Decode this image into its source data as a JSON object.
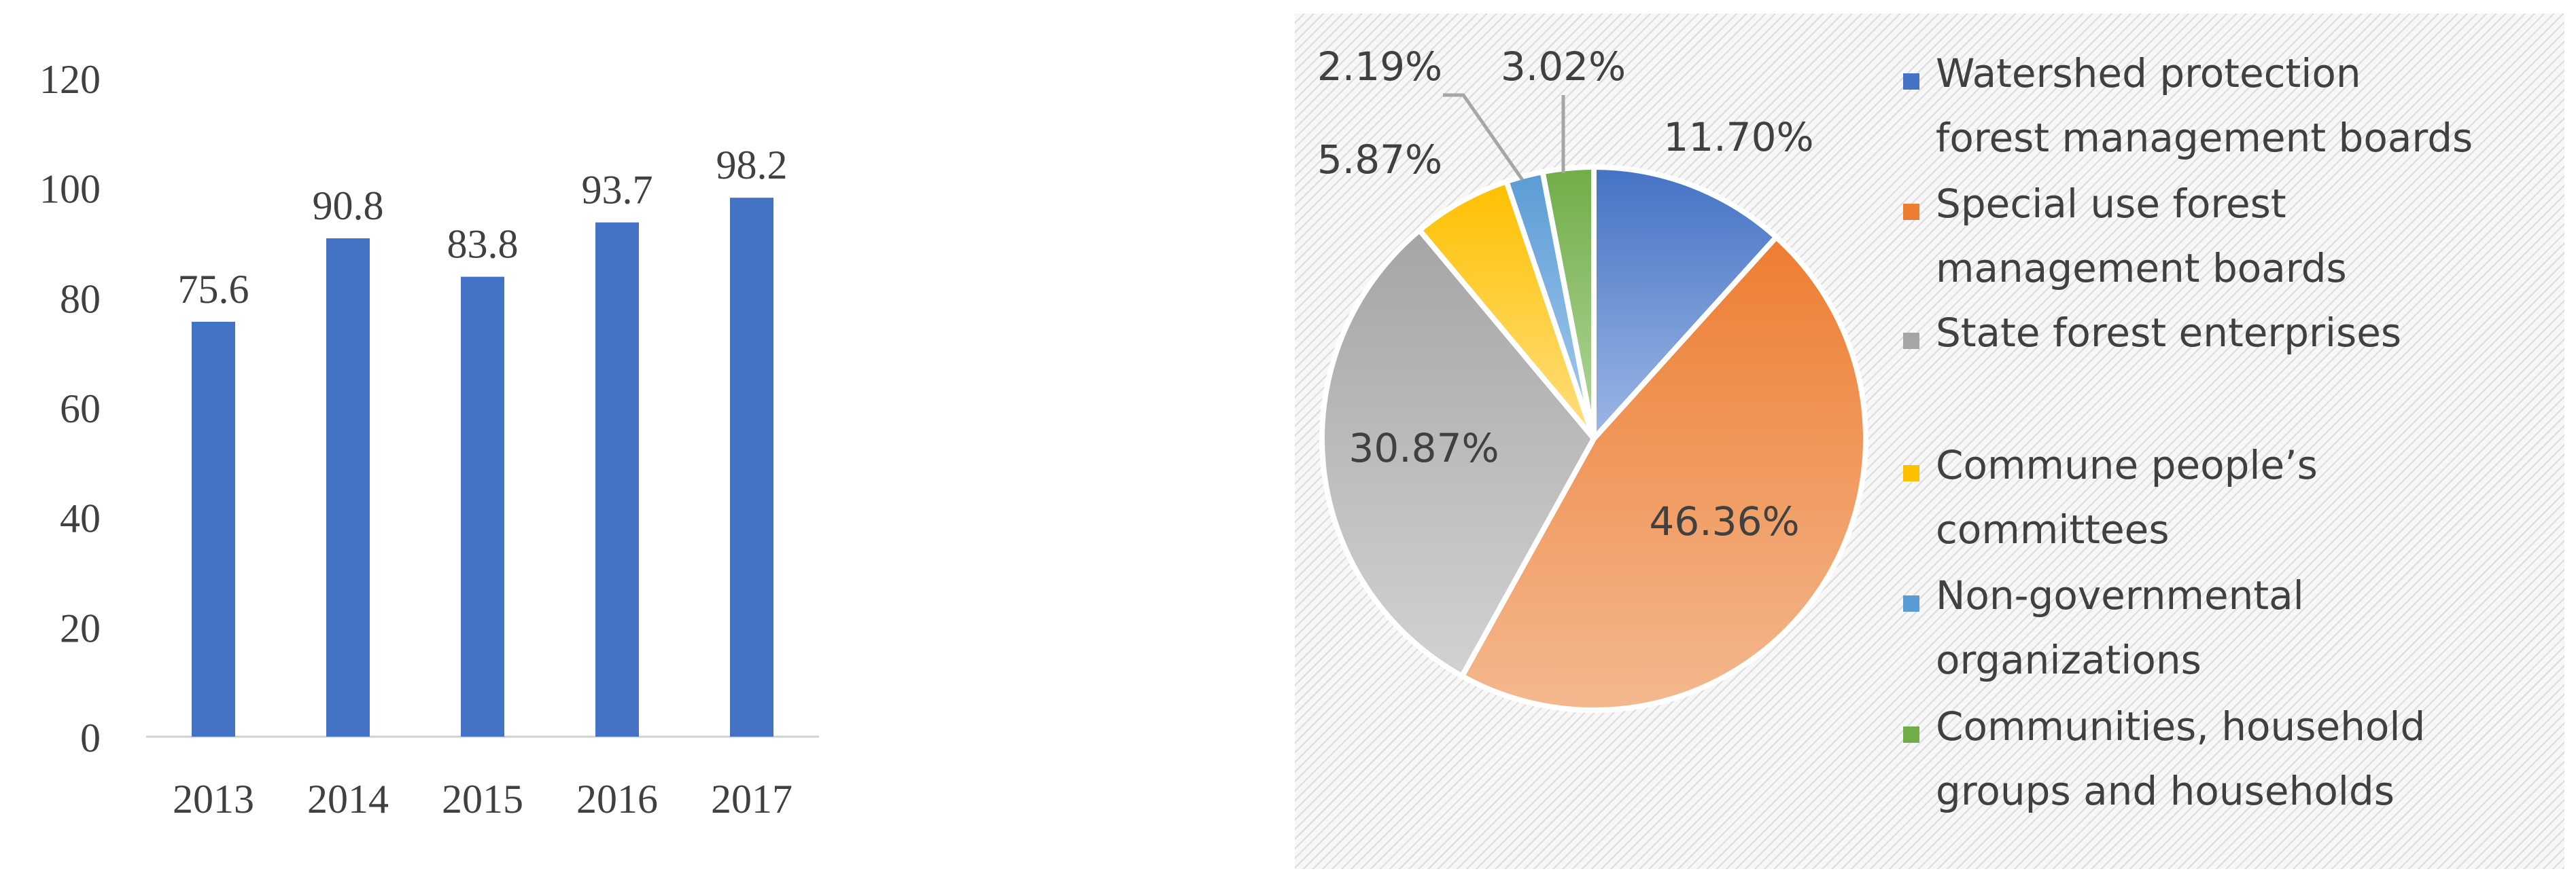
{
  "chart_data": [
    {
      "type": "bar",
      "title": "",
      "xlabel": "",
      "ylabel": "",
      "categories": [
        "2013",
        "2014",
        "2015",
        "2016",
        "2017"
      ],
      "values": [
        75.6,
        90.8,
        83.8,
        93.7,
        98.2
      ],
      "value_labels": [
        "75.6",
        "90.8",
        "83.8",
        "93.7",
        "98.2"
      ],
      "yticks": [
        "0",
        "20",
        "40",
        "60",
        "80",
        "100",
        "120"
      ],
      "ylim": [
        0,
        120
      ],
      "grid": false,
      "legend": "none",
      "color": "#4472c4"
    },
    {
      "type": "pie",
      "title": "",
      "legend_position": "right",
      "background": "hatched light gray",
      "slices": [
        {
          "name": "Watershed protection forest management boards",
          "value": 11.7,
          "label": "11.70%",
          "color": "#4472c4",
          "color_light": "#9db7e6"
        },
        {
          "name": "Special use forest management boards",
          "value": 46.36,
          "label": "46.36%",
          "color": "#ed7d31",
          "color_light": "#f4b88f"
        },
        {
          "name": "State forest enterprises",
          "value": 30.87,
          "label": "30.87%",
          "color": "#a5a5a5",
          "color_light": "#d2d2d2"
        },
        {
          "name": "Commune people’s committees",
          "value": 5.87,
          "label": "5.87%",
          "color": "#ffc000",
          "color_light": "#ffdf80"
        },
        {
          "name": "Non-governmental organizations",
          "value": 2.19,
          "label": "2.19%",
          "color": "#5b9bd5",
          "color_light": "#a9cdee"
        },
        {
          "name": "Communities, household groups and households",
          "value": 3.02,
          "label": "3.02%",
          "color": "#70ad47",
          "color_light": "#b4d79e"
        }
      ],
      "legend_lines": [
        [
          "Watershed protection",
          "forest management boards"
        ],
        [
          "Special use forest",
          "management boards"
        ],
        [
          "State forest enterprises"
        ],
        [
          "Commune people’s",
          "committees"
        ],
        [
          "Non-governmental",
          "organizations"
        ],
        [
          "Communities, household",
          "groups and households"
        ]
      ]
    }
  ]
}
